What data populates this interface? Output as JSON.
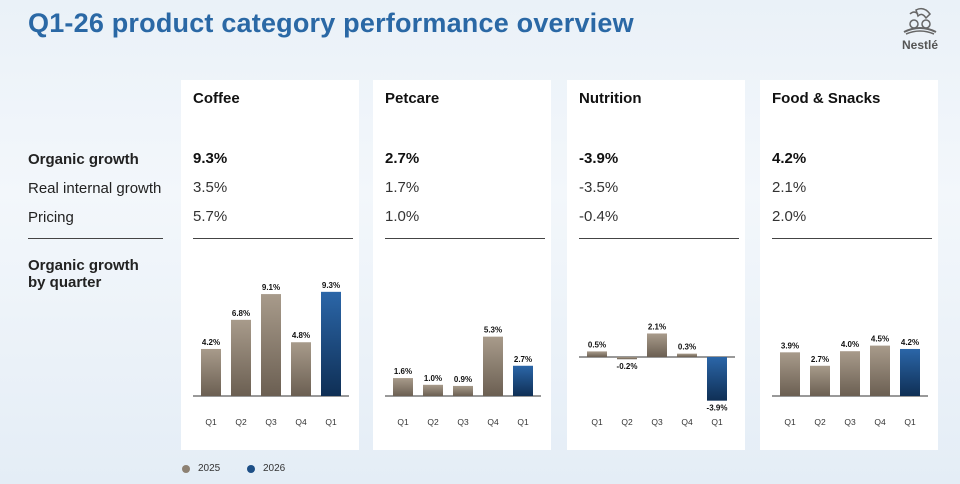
{
  "page": {
    "title": "Q1-26 product category performance overview",
    "logo_text": "Nestlé"
  },
  "row_labels": {
    "organic_growth": "Organic growth",
    "rig": "Real internal growth",
    "pricing": "Pricing",
    "by_quarter_line1": "Organic growth",
    "by_quarter_line2": "by quarter"
  },
  "legend": [
    {
      "label": "2025",
      "color": "#8d8173"
    },
    {
      "label": "2026",
      "color": "#1d4f86"
    }
  ],
  "colors": {
    "bar_2025_top": "#a89b8b",
    "bar_2025_bottom": "#6b5f52",
    "bar_2026_top": "#2b66a8",
    "bar_2026_bottom": "#0f2f55"
  },
  "categories": [
    {
      "name": "Coffee",
      "organic_growth": "9.3%",
      "rig": "3.5%",
      "pricing": "5.7%"
    },
    {
      "name": "Petcare",
      "organic_growth": "2.7%",
      "rig": "1.7%",
      "pricing": "1.0%"
    },
    {
      "name": "Nutrition",
      "organic_growth": "-3.9%",
      "rig": "-3.5%",
      "pricing": "-0.4%"
    },
    {
      "name": "Food & Snacks",
      "organic_growth": "4.2%",
      "rig": "2.1%",
      "pricing": "2.0%"
    }
  ],
  "chart_data": [
    {
      "type": "bar",
      "title": "Coffee",
      "categories": [
        "Q1",
        "Q2",
        "Q3",
        "Q4",
        "Q1"
      ],
      "years": [
        "2025",
        "2025",
        "2025",
        "2025",
        "2026"
      ],
      "values": [
        4.2,
        6.8,
        9.1,
        4.8,
        9.3
      ],
      "labels": [
        "4.2%",
        "6.8%",
        "9.1%",
        "4.8%",
        "9.3%"
      ]
    },
    {
      "type": "bar",
      "title": "Petcare",
      "categories": [
        "Q1",
        "Q2",
        "Q3",
        "Q4",
        "Q1"
      ],
      "years": [
        "2025",
        "2025",
        "2025",
        "2025",
        "2026"
      ],
      "values": [
        1.6,
        1.0,
        0.9,
        5.3,
        2.7
      ],
      "labels": [
        "1.6%",
        "1.0%",
        "0.9%",
        "5.3%",
        "2.7%"
      ]
    },
    {
      "type": "bar",
      "title": "Nutrition",
      "categories": [
        "Q1",
        "Q2",
        "Q3",
        "Q4",
        "Q1"
      ],
      "years": [
        "2025",
        "2025",
        "2025",
        "2025",
        "2026"
      ],
      "values": [
        0.5,
        -0.2,
        2.1,
        0.3,
        -3.9
      ],
      "labels": [
        "0.5%",
        "-0.2%",
        "2.1%",
        "0.3%",
        "-3.9%"
      ]
    },
    {
      "type": "bar",
      "title": "Food & Snacks",
      "categories": [
        "Q1",
        "Q2",
        "Q3",
        "Q4",
        "Q1"
      ],
      "years": [
        "2025",
        "2025",
        "2025",
        "2025",
        "2026"
      ],
      "values": [
        3.9,
        2.7,
        4.0,
        4.5,
        4.2
      ],
      "labels": [
        "3.9%",
        "2.7%",
        "4.0%",
        "4.5%",
        "4.2%"
      ]
    }
  ]
}
